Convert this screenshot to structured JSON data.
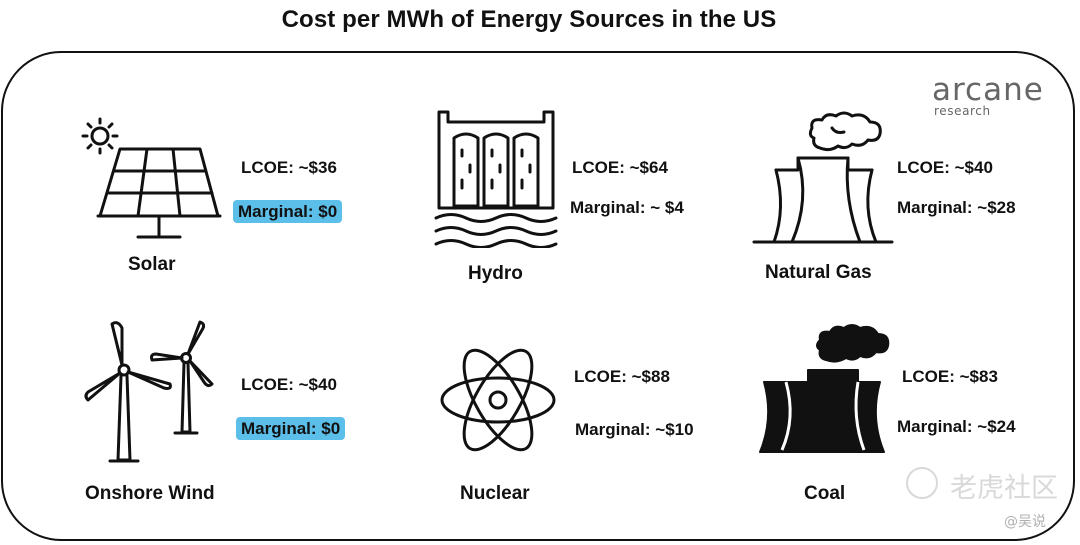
{
  "chart_data": {
    "type": "table",
    "title": "Cost per MWh of Energy Sources in the US",
    "brand": {
      "name": "arcane",
      "sub": "research",
      "color": "#666666"
    },
    "highlight_color": "#5bbfe9",
    "sources": [
      {
        "name": "Solar",
        "lcoe_label": "LCOE: ~$36",
        "marginal_label": "Marginal: $0",
        "lcoe": 36,
        "marginal": 0,
        "highlighted": true,
        "icon": "solar-panel-icon"
      },
      {
        "name": "Hydro",
        "lcoe_label": "LCOE: ~$64",
        "marginal_label": "Marginal: ~ $4",
        "lcoe": 64,
        "marginal": 4,
        "highlighted": false,
        "icon": "hydro-dam-icon"
      },
      {
        "name": "Natural Gas",
        "lcoe_label": "LCOE: ~$40",
        "marginal_label": "Marginal: ~$28",
        "lcoe": 40,
        "marginal": 28,
        "highlighted": false,
        "icon": "cooling-tower-outline-icon"
      },
      {
        "name": "Onshore Wind",
        "lcoe_label": "LCOE: ~$40",
        "marginal_label": "Marginal: $0",
        "lcoe": 40,
        "marginal": 0,
        "highlighted": true,
        "icon": "wind-turbine-icon"
      },
      {
        "name": "Nuclear",
        "lcoe_label": "LCOE: ~$88",
        "marginal_label": "Marginal: ~$10",
        "lcoe": 88,
        "marginal": 10,
        "highlighted": false,
        "icon": "atom-icon"
      },
      {
        "name": "Coal",
        "lcoe_label": "LCOE: ~$83",
        "marginal_label": "Marginal: ~$24",
        "lcoe": 83,
        "marginal": 24,
        "highlighted": false,
        "icon": "cooling-tower-solid-icon"
      }
    ]
  },
  "watermark": {
    "main": "老虎社区",
    "sub": "@吴说"
  }
}
